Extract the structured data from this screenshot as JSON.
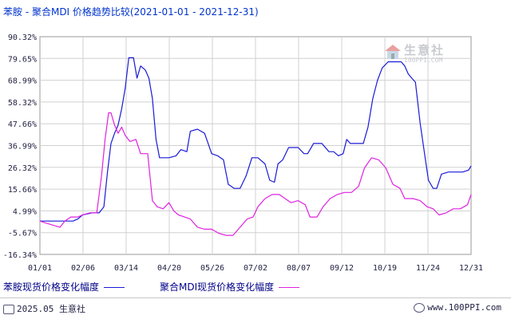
{
  "title": "苯胺 - 聚合MDI 价格趋势比较(2021-01-01 - 2021-12-31)",
  "watermark": {
    "name": "生意社",
    "url": "100PPI.COM"
  },
  "footer": {
    "left": "2025.05 生意社",
    "right": "www.100PPI.com"
  },
  "colors": {
    "series1": "#1a1ad6",
    "series2": "#e022e0",
    "grid": "#d0d0d0",
    "frame": "#999999"
  },
  "chart_data": {
    "type": "line",
    "title": "苯胺 - 聚合MDI 价格趋势比较(2021-01-01 - 2021-12-31)",
    "x_tick_labels": [
      "01/01",
      "02/06",
      "03/14",
      "04/20",
      "05/26",
      "07/02",
      "08/07",
      "09/12",
      "10/19",
      "11/24",
      "12/31"
    ],
    "y_tick_labels": [
      "90.32%",
      "79.65%",
      "68.99%",
      "58.32%",
      "47.66%",
      "36.99%",
      "26.32%",
      "15.66%",
      "4.99%",
      "-5.67%",
      "-16.34%"
    ],
    "ylim": [
      -16.34,
      90.32
    ],
    "xlim": [
      "2021-01-01",
      "2021-12-31"
    ],
    "grid": true,
    "legend_position": "bottom",
    "series": [
      {
        "name": "苯胺现货价格变化幅度",
        "points": [
          [
            "2021-01-01",
            0
          ],
          [
            "2021-01-08",
            0
          ],
          [
            "2021-01-15",
            0
          ],
          [
            "2021-01-22",
            0
          ],
          [
            "2021-01-29",
            0
          ],
          [
            "2021-02-02",
            1
          ],
          [
            "2021-02-06",
            3
          ],
          [
            "2021-02-14",
            4
          ],
          [
            "2021-02-20",
            4
          ],
          [
            "2021-02-24",
            7
          ],
          [
            "2021-02-27",
            24
          ],
          [
            "2021-03-02",
            38
          ],
          [
            "2021-03-05",
            43
          ],
          [
            "2021-03-08",
            47
          ],
          [
            "2021-03-11",
            55
          ],
          [
            "2021-03-14",
            65
          ],
          [
            "2021-03-17",
            80
          ],
          [
            "2021-03-21",
            80
          ],
          [
            "2021-03-24",
            70
          ],
          [
            "2021-03-27",
            76
          ],
          [
            "2021-03-31",
            74
          ],
          [
            "2021-04-03",
            70
          ],
          [
            "2021-04-06",
            60
          ],
          [
            "2021-04-09",
            40
          ],
          [
            "2021-04-12",
            31
          ],
          [
            "2021-04-20",
            31
          ],
          [
            "2021-04-26",
            32
          ],
          [
            "2021-04-30",
            35
          ],
          [
            "2021-05-05",
            34
          ],
          [
            "2021-05-08",
            44
          ],
          [
            "2021-05-14",
            45
          ],
          [
            "2021-05-20",
            43
          ],
          [
            "2021-05-26",
            33
          ],
          [
            "2021-05-31",
            32
          ],
          [
            "2021-06-05",
            30
          ],
          [
            "2021-06-09",
            18
          ],
          [
            "2021-06-14",
            16
          ],
          [
            "2021-06-19",
            16
          ],
          [
            "2021-06-24",
            22
          ],
          [
            "2021-06-29",
            31
          ],
          [
            "2021-07-04",
            31
          ],
          [
            "2021-07-10",
            28
          ],
          [
            "2021-07-14",
            20
          ],
          [
            "2021-07-18",
            19
          ],
          [
            "2021-07-21",
            28
          ],
          [
            "2021-07-25",
            30
          ],
          [
            "2021-07-30",
            36
          ],
          [
            "2021-08-05",
            36
          ],
          [
            "2021-08-07",
            36
          ],
          [
            "2021-08-12",
            33
          ],
          [
            "2021-08-15",
            33
          ],
          [
            "2021-08-20",
            38
          ],
          [
            "2021-08-27",
            38
          ],
          [
            "2021-09-02",
            34
          ],
          [
            "2021-09-06",
            34
          ],
          [
            "2021-09-10",
            32
          ],
          [
            "2021-09-14",
            33
          ],
          [
            "2021-09-17",
            40
          ],
          [
            "2021-09-20",
            38
          ],
          [
            "2021-09-24",
            38
          ],
          [
            "2021-10-01",
            38
          ],
          [
            "2021-10-05",
            46
          ],
          [
            "2021-10-09",
            60
          ],
          [
            "2021-10-13",
            69
          ],
          [
            "2021-10-17",
            75
          ],
          [
            "2021-10-22",
            78
          ],
          [
            "2021-10-28",
            78
          ],
          [
            "2021-11-02",
            78
          ],
          [
            "2021-11-05",
            76
          ],
          [
            "2021-11-08",
            72
          ],
          [
            "2021-11-11",
            70
          ],
          [
            "2021-11-14",
            68
          ],
          [
            "2021-11-18",
            48
          ],
          [
            "2021-11-22",
            32
          ],
          [
            "2021-11-25",
            20
          ],
          [
            "2021-11-29",
            16
          ],
          [
            "2021-12-02",
            16
          ],
          [
            "2021-12-06",
            23
          ],
          [
            "2021-12-12",
            24
          ],
          [
            "2021-12-18",
            24
          ],
          [
            "2021-12-24",
            24
          ],
          [
            "2021-12-29",
            25
          ],
          [
            "2021-12-31",
            27
          ]
        ]
      },
      {
        "name": "聚合MDI现货价格变化幅度",
        "points": [
          [
            "2021-01-01",
            0
          ],
          [
            "2021-01-06",
            -1
          ],
          [
            "2021-01-12",
            -2
          ],
          [
            "2021-01-18",
            -3
          ],
          [
            "2021-01-22",
            0
          ],
          [
            "2021-01-27",
            2
          ],
          [
            "2021-02-02",
            2
          ],
          [
            "2021-02-06",
            3
          ],
          [
            "2021-02-12",
            4
          ],
          [
            "2021-02-18",
            4
          ],
          [
            "2021-02-22",
            22
          ],
          [
            "2021-02-25",
            40
          ],
          [
            "2021-02-28",
            53
          ],
          [
            "2021-03-02",
            53
          ],
          [
            "2021-03-05",
            47
          ],
          [
            "2021-03-08",
            43
          ],
          [
            "2021-03-11",
            46
          ],
          [
            "2021-03-14",
            42
          ],
          [
            "2021-03-18",
            39
          ],
          [
            "2021-03-23",
            40
          ],
          [
            "2021-03-27",
            33
          ],
          [
            "2021-04-02",
            33
          ],
          [
            "2021-04-06",
            10
          ],
          [
            "2021-04-10",
            7
          ],
          [
            "2021-04-15",
            6
          ],
          [
            "2021-04-20",
            9
          ],
          [
            "2021-04-24",
            5
          ],
          [
            "2021-04-28",
            3
          ],
          [
            "2021-05-03",
            2
          ],
          [
            "2021-05-08",
            1
          ],
          [
            "2021-05-14",
            -3
          ],
          [
            "2021-05-20",
            -4
          ],
          [
            "2021-05-26",
            -4
          ],
          [
            "2021-06-01",
            -6
          ],
          [
            "2021-06-07",
            -7
          ],
          [
            "2021-06-13",
            -7
          ],
          [
            "2021-06-19",
            -3
          ],
          [
            "2021-06-25",
            1
          ],
          [
            "2021-06-30",
            2
          ],
          [
            "2021-07-04",
            7
          ],
          [
            "2021-07-10",
            11
          ],
          [
            "2021-07-16",
            13
          ],
          [
            "2021-07-22",
            13
          ],
          [
            "2021-07-27",
            11
          ],
          [
            "2021-08-01",
            9
          ],
          [
            "2021-08-07",
            10
          ],
          [
            "2021-08-13",
            8
          ],
          [
            "2021-08-17",
            2
          ],
          [
            "2021-08-23",
            2
          ],
          [
            "2021-08-28",
            7
          ],
          [
            "2021-09-03",
            11
          ],
          [
            "2021-09-09",
            13
          ],
          [
            "2021-09-15",
            14
          ],
          [
            "2021-09-21",
            14
          ],
          [
            "2021-09-27",
            17
          ],
          [
            "2021-10-02",
            26
          ],
          [
            "2021-10-08",
            31
          ],
          [
            "2021-10-14",
            30
          ],
          [
            "2021-10-20",
            26
          ],
          [
            "2021-10-26",
            18
          ],
          [
            "2021-11-01",
            16
          ],
          [
            "2021-11-05",
            11
          ],
          [
            "2021-11-12",
            11
          ],
          [
            "2021-11-18",
            10
          ],
          [
            "2021-11-24",
            7
          ],
          [
            "2021-11-29",
            6
          ],
          [
            "2021-12-04",
            3
          ],
          [
            "2021-12-10",
            4
          ],
          [
            "2021-12-16",
            6
          ],
          [
            "2021-12-22",
            6
          ],
          [
            "2021-12-28",
            8
          ],
          [
            "2021-12-31",
            13
          ]
        ]
      }
    ]
  }
}
